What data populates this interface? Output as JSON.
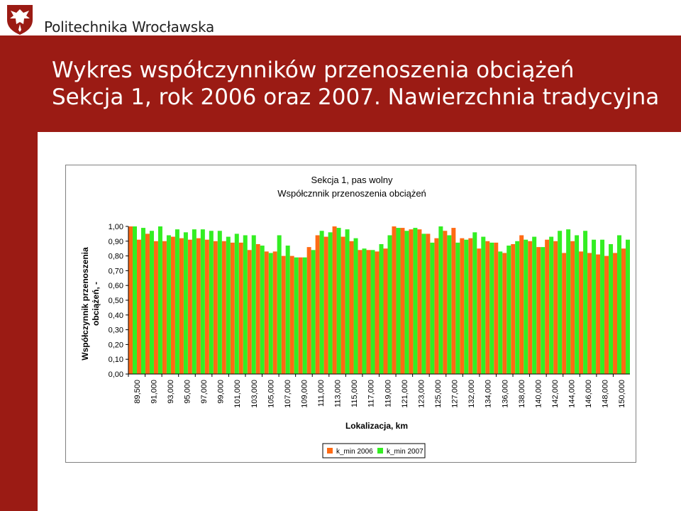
{
  "header": {
    "university": "Politechnika Wrocławska",
    "logo_icon": "eagle-shield-logo",
    "title_line1": "Wykres współczynników przenoszenia obciążeń",
    "title_line2": "Sekcja 1, rok 2006 oraz 2007. Nawierzchnia tradycyjna"
  },
  "colors": {
    "brand": "#9b1b14",
    "series_2006": "#ff6a13",
    "series_2007": "#33ee22"
  },
  "chart_data": {
    "type": "bar",
    "title": "Sekcja 1, pas wolny",
    "subtitle": "Współcznnik przenoszenia obciążeń",
    "ylabel_line1": "Współczynnik przenoszenia",
    "ylabel_line2": "obciążeń, -",
    "xlabel": "Lokalizacja, km",
    "ylim": [
      0,
      1
    ],
    "yticks": [
      "0,00",
      "0,10",
      "0,20",
      "0,30",
      "0,40",
      "0,50",
      "0,60",
      "0,70",
      "0,80",
      "0,90",
      "1,00"
    ],
    "xtick_labels": [
      "89,500",
      "91,000",
      "93,000",
      "95,000",
      "97,000",
      "99,000",
      "101,000",
      "103,000",
      "105,000",
      "107,000",
      "109,000",
      "111,000",
      "113,000",
      "115,000",
      "117,000",
      "119,000",
      "121,000",
      "123,000",
      "125,000",
      "127,000",
      "132,000",
      "134,000",
      "136,000",
      "138,000",
      "140,000",
      "142,000",
      "144,000",
      "146,000",
      "148,000",
      "150,000"
    ],
    "legend_position": "bottom",
    "grid": false,
    "series": [
      {
        "name": "k_min 2006",
        "values": [
          1.0,
          0.91,
          0.95,
          0.9,
          0.9,
          0.93,
          0.92,
          0.91,
          0.92,
          0.91,
          0.9,
          0.9,
          0.89,
          0.89,
          0.84,
          0.88,
          0.83,
          0.83,
          0.8,
          0.8,
          0.79,
          0.86,
          0.94,
          0.93,
          1.0,
          0.93,
          0.9,
          0.84,
          0.84,
          0.83,
          0.85,
          1.0,
          0.99,
          0.98,
          0.98,
          0.95,
          0.92,
          0.97,
          0.99,
          0.92,
          0.92,
          0.85,
          0.9,
          0.89,
          0.82,
          0.88,
          0.94,
          0.9,
          0.86,
          0.91,
          0.9,
          0.82,
          0.9,
          0.83,
          0.82,
          0.81,
          0.8,
          0.82,
          0.85
        ]
      },
      {
        "name": "k_min 2007",
        "values": [
          1.0,
          0.99,
          0.97,
          1.0,
          0.94,
          0.98,
          0.96,
          0.98,
          0.98,
          0.97,
          0.97,
          0.93,
          0.95,
          0.94,
          0.94,
          0.87,
          0.82,
          0.94,
          0.87,
          0.79,
          0.79,
          0.84,
          0.97,
          0.96,
          0.99,
          0.98,
          0.92,
          0.85,
          0.84,
          0.88,
          0.94,
          0.99,
          0.97,
          0.99,
          0.95,
          0.89,
          1.0,
          0.94,
          0.89,
          0.91,
          0.96,
          0.93,
          0.89,
          0.83,
          0.87,
          0.9,
          0.91,
          0.93,
          0.86,
          0.93,
          0.97,
          0.98,
          0.94,
          0.97,
          0.91,
          0.91,
          0.88,
          0.94,
          0.91
        ]
      }
    ]
  }
}
